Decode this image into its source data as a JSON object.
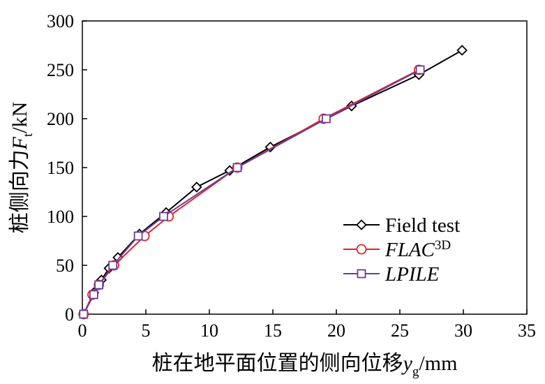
{
  "chart_data": {
    "type": "line",
    "title": "",
    "xlabel": "桩在地平面位置的侧向位移",
    "xlabel_var": "y",
    "xlabel_sub": "g",
    "xlabel_unit": "/mm",
    "ylabel": "桩侧向力",
    "ylabel_var": "F",
    "ylabel_sub": "t",
    "ylabel_unit": "/kN",
    "xlim": [
      0,
      35
    ],
    "ylim": [
      0,
      300
    ],
    "xticks": [
      0,
      5,
      10,
      15,
      20,
      25,
      30,
      35
    ],
    "yticks": [
      0,
      50,
      100,
      150,
      200,
      250,
      300
    ],
    "xtick_labels": [
      "0",
      "5",
      "10",
      "15",
      "20",
      "25",
      "30",
      "35"
    ],
    "ytick_labels": [
      "0",
      "50",
      "100",
      "150",
      "200",
      "250",
      "300"
    ],
    "grid": false,
    "legend_position": "bottom-right",
    "series": [
      {
        "name": "Field test",
        "legend_label": "Field test",
        "color": "#000000",
        "marker": "diamond",
        "x": [
          0.1,
          0.9,
          1.5,
          2.1,
          2.8,
          4.5,
          6.6,
          9.0,
          11.6,
          14.8,
          21.2,
          26.5,
          29.9
        ],
        "y": [
          0,
          22,
          35,
          47,
          58,
          82,
          104,
          130,
          147,
          171,
          213,
          245,
          270
        ]
      },
      {
        "name": "FLAC3D",
        "legend_label": "FLAC",
        "legend_sup": "3D",
        "color": "#e8202a",
        "marker": "circle",
        "x": [
          0.1,
          0.8,
          1.3,
          2.5,
          4.9,
          6.8,
          12.2,
          19.0,
          26.5
        ],
        "y": [
          0,
          20,
          30,
          50,
          80,
          100,
          150,
          200,
          250
        ]
      },
      {
        "name": "LPILE",
        "legend_label": "LPILE",
        "color": "#6a3d9a",
        "marker": "square",
        "x": [
          0.1,
          0.9,
          1.3,
          2.4,
          4.4,
          6.4,
          12.2,
          19.2,
          26.6
        ],
        "y": [
          0,
          20,
          30,
          50,
          80,
          100,
          150,
          200,
          250
        ]
      }
    ]
  }
}
